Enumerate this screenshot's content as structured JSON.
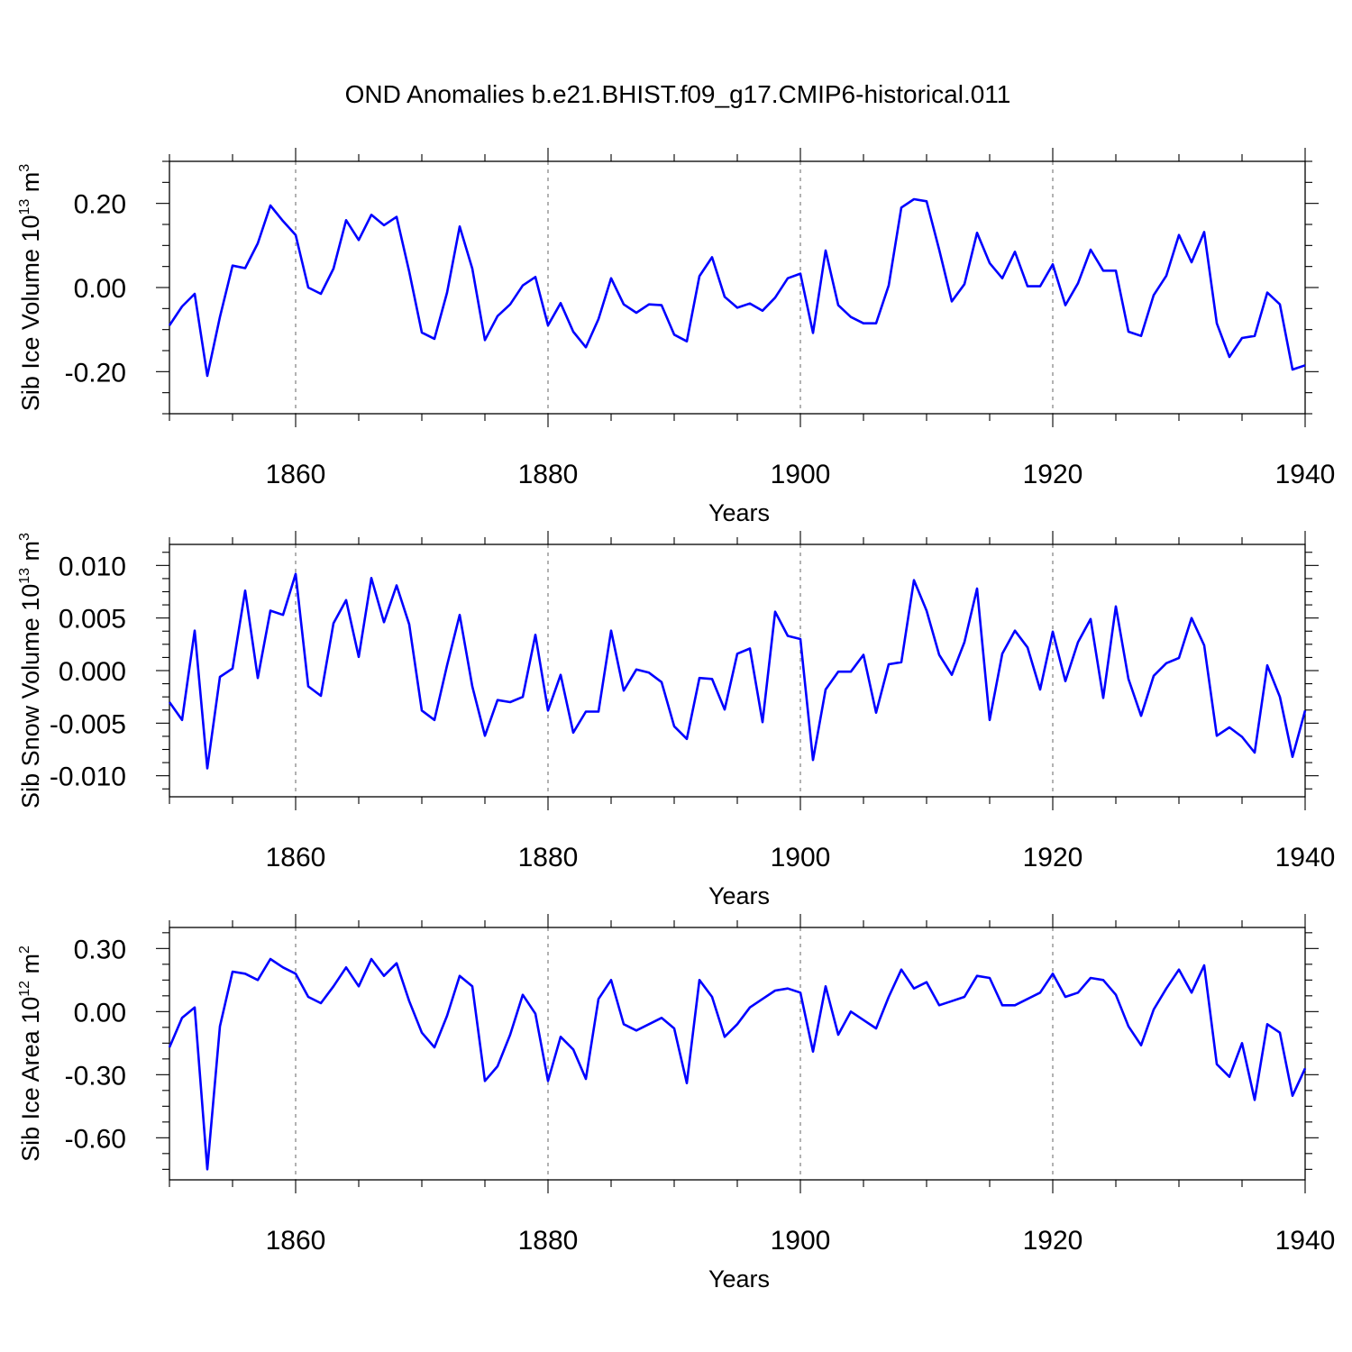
{
  "title": "OND Anomalies b.e21.BHIST.f09_g17.CMIP6-historical.011",
  "colors": {
    "line": "#0000ff",
    "axis": "#000000",
    "grid": "#666666"
  },
  "chart_data": [
    {
      "type": "line",
      "title": "OND Anomalies b.e21.BHIST.f09_g17.CMIP6-historical.011",
      "xlabel": "Years",
      "ylabel": {
        "prefix": "Sib Ice Volume 10",
        "exp": "13",
        "unit": " m",
        "unit_exp": "3"
      },
      "xlim": [
        1850,
        1940
      ],
      "ylim": [
        -0.3,
        0.3
      ],
      "xticks": [
        1860,
        1880,
        1900,
        1920,
        1940
      ],
      "xtick_labels": [
        "1860",
        "1880",
        "1900",
        "1920",
        "1940"
      ],
      "yticks": [
        0.2,
        0.0,
        -0.2
      ],
      "ytick_labels": [
        "0.20",
        "0.00",
        "-0.20"
      ],
      "x_start": 1850,
      "values": [
        -0.09,
        -0.045,
        -0.015,
        -0.21,
        -0.07,
        0.052,
        0.046,
        0.105,
        0.195,
        0.158,
        0.125,
        0.0,
        -0.015,
        0.045,
        0.16,
        0.113,
        0.173,
        0.148,
        0.168,
        0.038,
        -0.107,
        -0.122,
        -0.012,
        0.145,
        0.045,
        -0.125,
        -0.068,
        -0.04,
        0.005,
        0.025,
        -0.09,
        -0.037,
        -0.105,
        -0.142,
        -0.075,
        0.022,
        -0.04,
        -0.06,
        -0.04,
        -0.042,
        -0.112,
        -0.128,
        0.027,
        0.072,
        -0.022,
        -0.048,
        -0.038,
        -0.055,
        -0.024,
        0.022,
        0.033,
        -0.108,
        0.088,
        -0.042,
        -0.07,
        -0.085,
        -0.085,
        0.005,
        0.19,
        0.21,
        0.205,
        0.09,
        -0.033,
        0.008,
        0.13,
        0.058,
        0.022,
        0.085,
        0.003,
        0.003,
        0.055,
        -0.042,
        0.01,
        0.09,
        0.04,
        0.04,
        -0.105,
        -0.115,
        -0.018,
        0.028,
        0.125,
        0.06,
        0.132,
        -0.085,
        -0.165,
        -0.12,
        -0.115,
        -0.012,
        -0.04,
        -0.195,
        -0.185
      ]
    },
    {
      "type": "line",
      "xlabel": "Years",
      "ylabel": {
        "prefix": "Sib Snow Volume 10",
        "exp": "13",
        "unit": " m",
        "unit_exp": "3"
      },
      "xlim": [
        1850,
        1940
      ],
      "ylim": [
        -0.012,
        0.012
      ],
      "xticks": [
        1860,
        1880,
        1900,
        1920,
        1940
      ],
      "xtick_labels": [
        "1860",
        "1880",
        "1900",
        "1920",
        "1940"
      ],
      "yticks": [
        0.01,
        0.005,
        0.0,
        -0.005,
        -0.01
      ],
      "ytick_labels": [
        "0.010",
        "0.005",
        "0.000",
        "-0.005",
        "-0.010"
      ],
      "x_start": 1850,
      "values": [
        -0.003,
        -0.0047,
        0.0038,
        -0.0093,
        -0.0006,
        0.0002,
        0.0076,
        -0.0007,
        0.0057,
        0.0053,
        0.0092,
        -0.0015,
        -0.0024,
        0.0045,
        0.0067,
        0.0013,
        0.0088,
        0.0046,
        0.0081,
        0.0044,
        -0.0038,
        -0.0047,
        0.0005,
        0.0053,
        -0.0015,
        -0.0062,
        -0.0028,
        -0.003,
        -0.0025,
        0.0034,
        -0.0038,
        -0.0004,
        -0.0059,
        -0.0039,
        -0.0039,
        0.0038,
        -0.0019,
        0.0001,
        -0.0002,
        -0.0011,
        -0.0053,
        -0.0065,
        -0.0007,
        -0.0008,
        -0.0037,
        0.0016,
        0.0021,
        -0.0049,
        0.0056,
        0.0033,
        0.003,
        -0.0085,
        -0.0018,
        -0.0001,
        -0.0001,
        0.0015,
        -0.004,
        0.0006,
        0.0008,
        0.0086,
        0.0057,
        0.0015,
        -0.0004,
        0.0027,
        0.0078,
        -0.0047,
        0.0016,
        0.0038,
        0.0022,
        -0.0018,
        0.0037,
        -0.001,
        0.0027,
        0.0049,
        -0.0026,
        0.0061,
        -0.0008,
        -0.0043,
        -0.0005,
        0.0007,
        0.0012,
        0.005,
        0.0024,
        -0.0062,
        -0.0054,
        -0.0063,
        -0.0078,
        0.0005,
        -0.0025,
        -0.0082,
        -0.0038
      ]
    },
    {
      "type": "line",
      "xlabel": "Years",
      "ylabel": {
        "prefix": "Sib Ice Area 10",
        "exp": "12",
        "unit": " m",
        "unit_exp": "2"
      },
      "xlim": [
        1850,
        1940
      ],
      "ylim": [
        -0.8,
        0.4
      ],
      "xticks": [
        1860,
        1880,
        1900,
        1920,
        1940
      ],
      "xtick_labels": [
        "1860",
        "1880",
        "1900",
        "1920",
        "1940"
      ],
      "yticks": [
        0.3,
        0.0,
        -0.3,
        -0.6
      ],
      "ytick_labels": [
        "0.30",
        "0.00",
        "-0.30",
        "-0.60"
      ],
      "x_start": 1850,
      "values": [
        -0.17,
        -0.03,
        0.02,
        -0.75,
        -0.07,
        0.19,
        0.18,
        0.15,
        0.25,
        0.21,
        0.18,
        0.07,
        0.04,
        0.12,
        0.21,
        0.12,
        0.25,
        0.17,
        0.23,
        0.05,
        -0.1,
        -0.17,
        -0.02,
        0.17,
        0.12,
        -0.33,
        -0.26,
        -0.11,
        0.08,
        -0.01,
        -0.33,
        -0.12,
        -0.18,
        -0.32,
        0.06,
        0.15,
        -0.06,
        -0.09,
        -0.06,
        -0.03,
        -0.08,
        -0.34,
        0.15,
        0.07,
        -0.12,
        -0.06,
        0.02,
        0.06,
        0.1,
        0.11,
        0.09,
        -0.19,
        0.12,
        -0.11,
        0.0,
        -0.04,
        -0.08,
        0.07,
        0.2,
        0.11,
        0.14,
        0.03,
        0.05,
        0.07,
        0.17,
        0.16,
        0.03,
        0.03,
        0.06,
        0.09,
        0.18,
        0.07,
        0.09,
        0.16,
        0.15,
        0.08,
        -0.07,
        -0.16,
        0.01,
        0.11,
        0.2,
        0.09,
        0.22,
        -0.25,
        -0.31,
        -0.15,
        -0.42,
        -0.06,
        -0.1,
        -0.4,
        -0.27
      ]
    }
  ]
}
